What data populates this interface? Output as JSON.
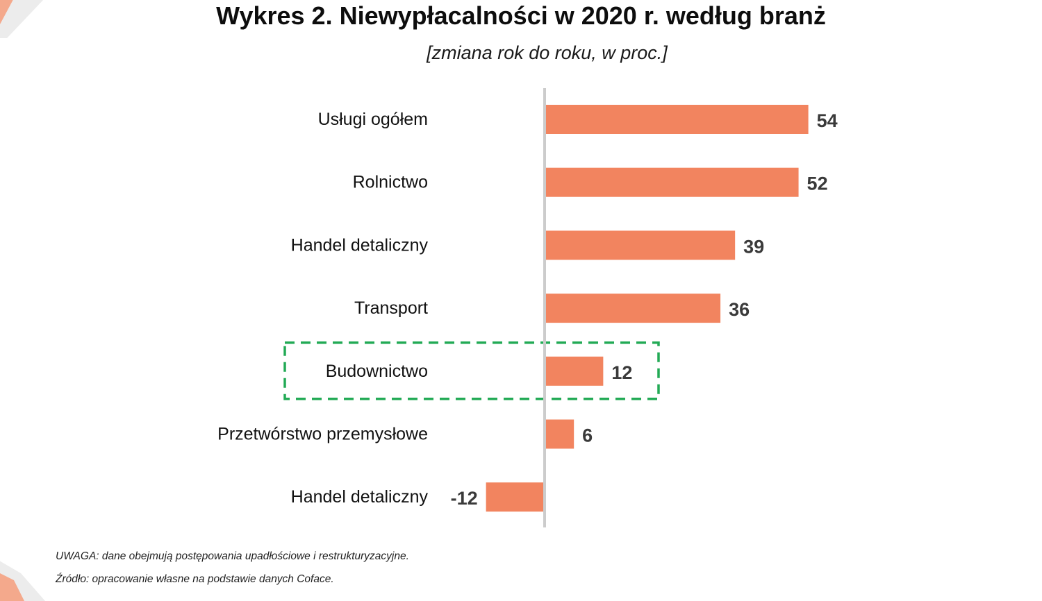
{
  "title": {
    "bold": "Wykres 2.",
    "rest": "Niewypłacalności w 2020 r. według branż"
  },
  "subtitle": "[zmiana rok do roku, w proc.]",
  "chart_data": {
    "type": "bar",
    "orientation": "horizontal",
    "categories": [
      "Usługi ogółem",
      "Rolnictwo",
      "Handel detaliczny",
      "Transport",
      "Budownictwo",
      "Przetwórstwo przemysłowe",
      "Handel detaliczny"
    ],
    "values": [
      54,
      52,
      39,
      36,
      12,
      6,
      -12
    ],
    "value_labels": [
      "54",
      "52",
      "39",
      "36",
      "12",
      "6",
      "-12"
    ],
    "highlighted_category_index": 4,
    "bar_color": "#f2845f",
    "axis_color": "#cccccc",
    "highlight_color": "#22aa55",
    "grid": false,
    "legend": "none"
  },
  "note": "UWAGA: dane obejmują postępowania upadłościowe i restrukturyzacyjne.",
  "source": "Źródło: opracowanie własne na podstawie danych Coface."
}
